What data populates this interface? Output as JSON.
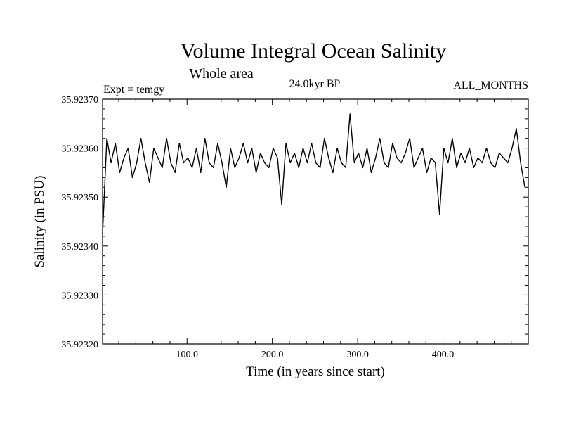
{
  "chart_data": {
    "type": "line",
    "title": "Volume Integral Ocean Salinity",
    "subtitle": "Whole area",
    "experiment_label": "Expt = temgy",
    "period_label": "24.0kyr BP",
    "months_label": "ALL_MONTHS",
    "xlabel": "Time (in years since start)",
    "ylabel": "Salinity (in PSU)",
    "xlim": [
      1,
      500
    ],
    "ylim": [
      35.9232,
      35.9237
    ],
    "x_ticks": [
      100,
      200,
      300,
      400
    ],
    "x_tick_labels": [
      "100.0",
      "200.0",
      "300.0",
      "400.0"
    ],
    "y_ticks": [
      35.9232,
      35.9233,
      35.9234,
      35.9235,
      35.9236,
      35.9237
    ],
    "y_tick_labels": [
      "35.92320",
      "35.92330",
      "35.92340",
      "35.92350",
      "35.92360",
      "35.92370"
    ],
    "series": [
      {
        "name": "Salinity",
        "color": "#000000",
        "x_start": 1,
        "x_step": 5,
        "values": [
          35.923425,
          35.92362,
          35.92357,
          35.92361,
          35.92355,
          35.92358,
          35.9236,
          35.92354,
          35.92357,
          35.92362,
          35.92357,
          35.92353,
          35.9236,
          35.92358,
          35.92356,
          35.92362,
          35.92357,
          35.92355,
          35.92361,
          35.92357,
          35.92358,
          35.92356,
          35.9236,
          35.92355,
          35.92362,
          35.92357,
          35.92356,
          35.92361,
          35.92357,
          35.92352,
          35.9236,
          35.92356,
          35.92358,
          35.92361,
          35.92357,
          35.9236,
          35.92355,
          35.92359,
          35.92357,
          35.92356,
          35.9236,
          35.92358,
          35.923485,
          35.92361,
          35.92357,
          35.92359,
          35.92356,
          35.9236,
          35.92357,
          35.92361,
          35.92357,
          35.92356,
          35.92362,
          35.92358,
          35.92355,
          35.9236,
          35.92357,
          35.92356,
          35.92367,
          35.92357,
          35.92359,
          35.92356,
          35.9236,
          35.92355,
          35.92358,
          35.92362,
          35.92357,
          35.92356,
          35.92361,
          35.92358,
          35.92357,
          35.92359,
          35.92362,
          35.92356,
          35.92358,
          35.9236,
          35.92355,
          35.92358,
          35.92357,
          35.923465,
          35.9236,
          35.92357,
          35.92362,
          35.92356,
          35.92359,
          35.92357,
          35.9236,
          35.92356,
          35.92358,
          35.92357,
          35.9236,
          35.92357,
          35.92356,
          35.92359,
          35.92358,
          35.92357,
          35.9236,
          35.92364,
          35.92357,
          35.92352
        ]
      }
    ]
  }
}
